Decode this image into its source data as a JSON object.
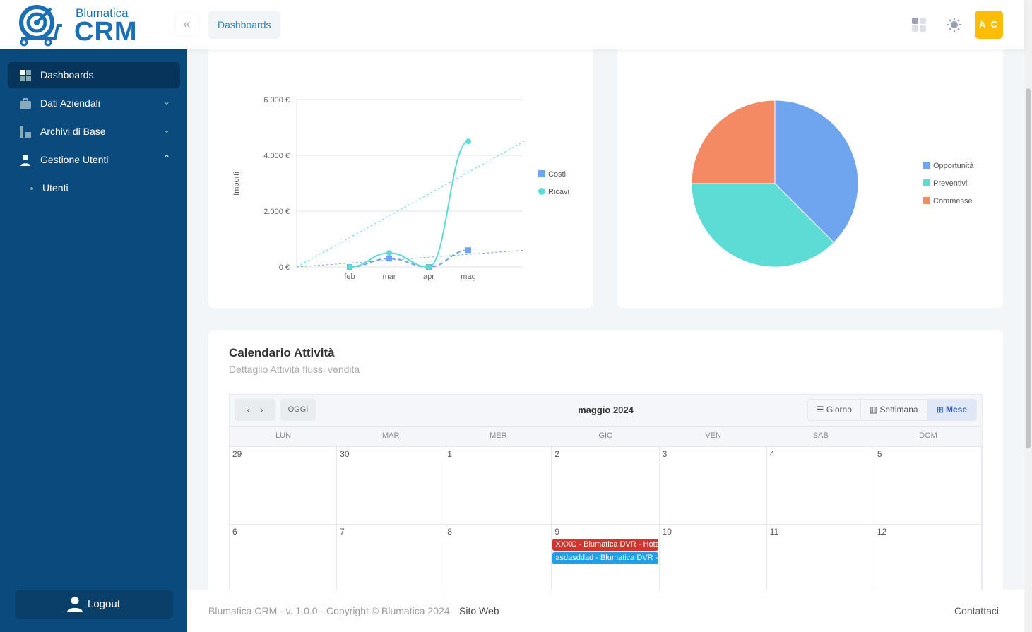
{
  "header": {
    "brand_top": "Blumatica",
    "brand_bottom": "CRM",
    "breadcrumb": "Dashboards",
    "avatar": "A C"
  },
  "sidebar": {
    "items": [
      {
        "label": "Dashboards"
      },
      {
        "label": "Dati Aziendali"
      },
      {
        "label": "Archivi di Base"
      },
      {
        "label": "Gestione Utenti"
      }
    ],
    "sub_items": [
      {
        "label": "Utenti"
      }
    ],
    "logout": "Logout"
  },
  "colors": {
    "sidebar": "#0b4a7c",
    "accent": "#2e86c1",
    "avatar": "#fbbd08",
    "costi": "#6fa4ee",
    "ricavi": "#5ddcd6",
    "commesse": "#f48a64",
    "event_red": "#d0362f",
    "event_blue": "#1fa0e8"
  },
  "chart_data": [
    {
      "type": "line",
      "ylabel": "Importi",
      "categories": [
        "feb",
        "mar",
        "apr",
        "mag"
      ],
      "yticks": [
        "0 €",
        "2.000 €",
        "4.000 €",
        "6.000 €"
      ],
      "ylim": [
        0,
        6000
      ],
      "legend": "right",
      "series": [
        {
          "name": "Costi",
          "values": [
            0,
            300,
            0,
            600
          ],
          "trend": [
            0,
            600
          ]
        },
        {
          "name": "Ricavi",
          "values": [
            0,
            500,
            0,
            4500
          ],
          "trend": [
            0,
            4500
          ]
        }
      ]
    },
    {
      "type": "pie",
      "legend": "right",
      "slices": [
        {
          "name": "Opportunità",
          "value": 3
        },
        {
          "name": "Preventivi",
          "value": 3
        },
        {
          "name": "Commesse",
          "value": 2
        }
      ]
    }
  ],
  "calendar": {
    "title": "Calendario Attività",
    "subtitle": "Dettaglio Attività flussi vendita",
    "today": "OGGI",
    "month": "maggio 2024",
    "views": [
      "Giorno",
      "Settimana",
      "Mese"
    ],
    "active_view": "Mese",
    "weekdays": [
      "LUN",
      "MAR",
      "MER",
      "GIO",
      "VEN",
      "SAB",
      "DOM"
    ],
    "weeks": [
      [
        "29",
        "30",
        "1",
        "2",
        "3",
        "4",
        "5"
      ],
      [
        "6",
        "7",
        "8",
        "9",
        "10",
        "11",
        "12"
      ]
    ],
    "events": [
      {
        "day": "9",
        "label": "XXXC - Blumatica DVR - Hotel"
      },
      {
        "day": "9",
        "label": "asdasddad - Blumatica DVR -"
      }
    ]
  },
  "footer": {
    "copyright": "Blumatica CRM - v. 1.0.0 - Copyright © Blumatica 2024",
    "site": "Sito Web",
    "contact": "Contattaci"
  }
}
